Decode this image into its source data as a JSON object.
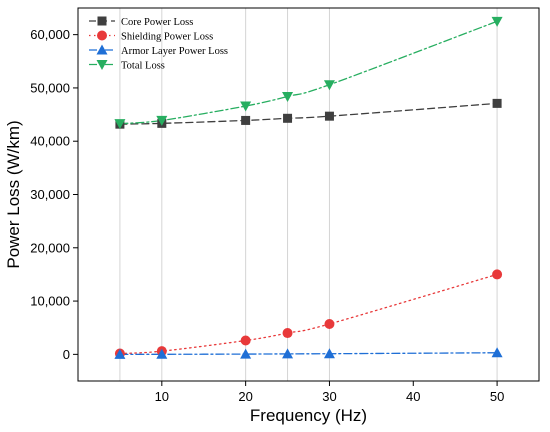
{
  "chart_data": {
    "type": "line",
    "title": "",
    "xlabel": "Frequency (Hz)",
    "ylabel": "Power Loss (W/km)",
    "x": [
      5,
      10,
      20,
      25,
      30,
      50
    ],
    "xlim": [
      0,
      55
    ],
    "ylim": [
      -5000,
      65000
    ],
    "xticks": [
      10,
      20,
      30,
      40,
      50
    ],
    "yticks": [
      0,
      10000,
      20000,
      30000,
      40000,
      50000,
      60000
    ],
    "ytick_labels": [
      "0",
      "10,000",
      "20,000",
      "30,000",
      "40,000",
      "50,000",
      "60,000"
    ],
    "grid": "vertical",
    "legend_position": "top-left",
    "series": [
      {
        "name": "Core Power Loss",
        "values": [
          43200,
          43350,
          43900,
          44300,
          44700,
          47100
        ],
        "color": "#3f3f3f",
        "marker": "square",
        "line_style": "dashed"
      },
      {
        "name": "Shielding Power Loss",
        "values": [
          150,
          600,
          2600,
          4000,
          5700,
          15000
        ],
        "color": "#e8393a",
        "marker": "circle",
        "line_style": "dotted"
      },
      {
        "name": "Armor Layer Power Loss",
        "values": [
          0,
          10,
          50,
          90,
          120,
          300
        ],
        "color": "#1f6fd6",
        "marker": "triangle-up",
        "line_style": "dash-dot"
      },
      {
        "name": "Total Loss",
        "values": [
          43300,
          43900,
          46600,
          48400,
          50600,
          62500
        ],
        "color": "#27ae60",
        "marker": "triangle-down",
        "line_style": "dash-dot"
      }
    ]
  }
}
